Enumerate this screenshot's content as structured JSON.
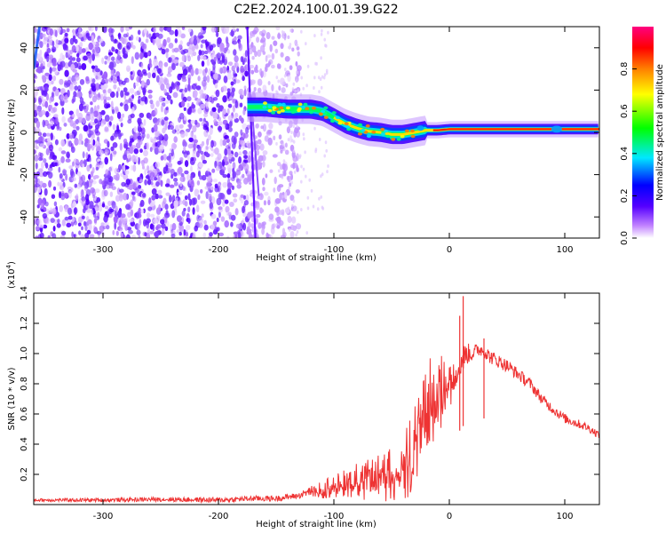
{
  "figure_title": "C2E2.2024.100.01.39.G22",
  "chart_data": [
    {
      "type": "heatmap",
      "name": "spectrogram",
      "xlabel": "Height of straight line (km)",
      "ylabel": "Frequency (Hz)",
      "xlim": [
        -360,
        130
      ],
      "ylim": [
        -50,
        50
      ],
      "xticks": [
        -300,
        -200,
        -100,
        0,
        100
      ],
      "xtick_labels": [
        "-300",
        "-200",
        "-100",
        "0",
        "100"
      ],
      "yticks": [
        -40,
        -20,
        0,
        20,
        40
      ],
      "ytick_labels": [
        "-40",
        "-20",
        "0",
        "20",
        "40"
      ],
      "colorbar": {
        "label": "Normalized spectral amplitude",
        "range": [
          0,
          1
        ],
        "ticks": [
          0,
          0.2,
          0.4,
          0.6,
          0.8
        ],
        "tick_labels": [
          "0.0",
          "0.2",
          "0.4",
          "0.6",
          "0.8"
        ]
      },
      "ridge_frequency": {
        "x": [
          -175,
          -160,
          -150,
          -140,
          -130,
          -120,
          -110,
          -100,
          -90,
          -80,
          -70,
          -60,
          -50,
          -40,
          -30,
          -20,
          -10,
          0,
          20,
          40,
          60,
          80,
          100,
          130
        ],
        "y": [
          12,
          12,
          11.5,
          11,
          11,
          11,
          10,
          7,
          4,
          2,
          0.5,
          0,
          -1,
          -1,
          0,
          1,
          1,
          1.5,
          1.5,
          1.5,
          1.5,
          1.5,
          1.5,
          1.5
        ]
      },
      "noise_region_x": [
        -360,
        -150
      ]
    },
    {
      "type": "line",
      "name": "snr",
      "xlabel": "Height of straight line (km)",
      "ylabel": "SNR (10 * v/v)",
      "scale_label": "(x10",
      "scale_exponent": "4",
      "scale_close": ")",
      "xlim": [
        -360,
        130
      ],
      "ylim": [
        0,
        1.4
      ],
      "xticks": [
        -300,
        -200,
        -100,
        0,
        100
      ],
      "xtick_labels": [
        "-300",
        "-200",
        "-100",
        "0",
        "100"
      ],
      "yticks": [
        0.2,
        0.4,
        0.6,
        0.8,
        1.0,
        1.2,
        1.4
      ],
      "ytick_labels": [
        "0.2",
        "0.4",
        "0.6",
        "0.8",
        "1.0",
        "1.2",
        "1.4"
      ],
      "series": [
        {
          "name": "SNR",
          "color": "#ee3333",
          "x": [
            -360,
            -300,
            -250,
            -200,
            -170,
            -150,
            -130,
            -120,
            -110,
            -100,
            -90,
            -80,
            -70,
            -60,
            -50,
            -40,
            -35,
            -30,
            -25,
            -20,
            -15,
            -10,
            -5,
            0,
            5,
            10,
            15,
            20,
            25,
            30,
            35,
            40,
            50,
            60,
            70,
            80,
            90,
            100,
            110,
            120,
            130
          ],
          "y": [
            0.03,
            0.03,
            0.035,
            0.03,
            0.04,
            0.04,
            0.06,
            0.09,
            0.11,
            0.14,
            0.16,
            0.19,
            0.19,
            0.21,
            0.25,
            0.28,
            0.35,
            0.45,
            0.55,
            0.7,
            0.76,
            0.78,
            0.82,
            0.86,
            0.9,
            0.95,
            1.0,
            1.0,
            1.03,
            1.02,
            0.98,
            0.96,
            0.92,
            0.86,
            0.8,
            0.7,
            0.63,
            0.57,
            0.54,
            0.51,
            0.46
          ]
        }
      ],
      "peak_spikes": [
        {
          "x": 12,
          "y": 1.38
        },
        {
          "x": 9,
          "y": 1.25
        },
        {
          "x": 30,
          "y": 1.1
        }
      ],
      "noise_amplitude": [
        {
          "x": -360,
          "amp": 0.01
        },
        {
          "x": -130,
          "amp": 0.02
        },
        {
          "x": -100,
          "amp": 0.06
        },
        {
          "x": -50,
          "amp": 0.14
        },
        {
          "x": -20,
          "amp": 0.25
        },
        {
          "x": 0,
          "amp": 0.15
        },
        {
          "x": 20,
          "amp": 0.05
        },
        {
          "x": 130,
          "amp": 0.025
        }
      ]
    }
  ]
}
